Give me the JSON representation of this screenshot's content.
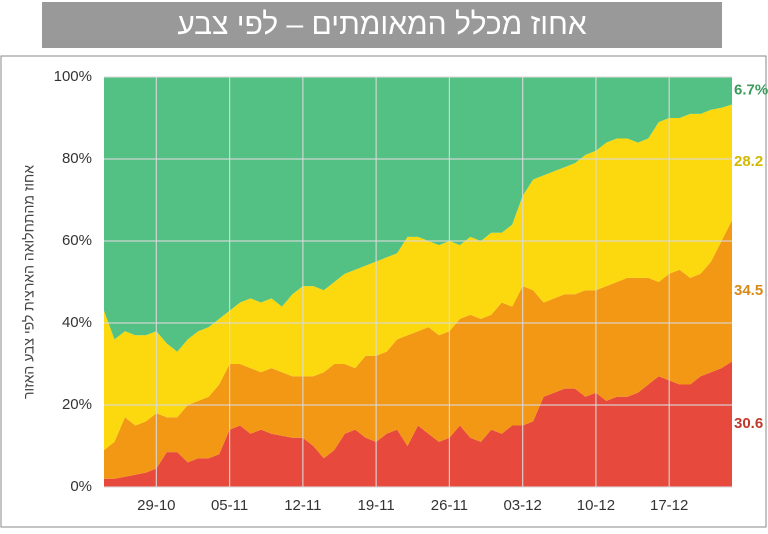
{
  "chart_data": {
    "type": "stacked_area",
    "title": "אחוז מכלל המאומתים – לפי צבע",
    "y_label": "אחוז מהתחלואה הארצית לפי צבע האזור",
    "categories": [
      null,
      null,
      null,
      null,
      null,
      "29-10",
      null,
      null,
      null,
      null,
      null,
      null,
      "05-11",
      null,
      null,
      null,
      null,
      null,
      null,
      "12-11",
      null,
      null,
      null,
      null,
      null,
      null,
      "19-11",
      null,
      null,
      null,
      null,
      null,
      null,
      "26-11",
      null,
      null,
      null,
      null,
      null,
      null,
      "03-12",
      null,
      null,
      null,
      null,
      null,
      null,
      "10-12",
      null,
      null,
      null,
      null,
      null,
      null,
      "17-12",
      null,
      null,
      null,
      null,
      null,
      null
    ],
    "ylim": [
      0,
      100
    ],
    "yticks": [
      {
        "value": 0,
        "label": "0%"
      },
      {
        "value": 20,
        "label": "20%"
      },
      {
        "value": 40,
        "label": "40%"
      },
      {
        "value": 60,
        "label": "60%"
      },
      {
        "value": 80,
        "label": "80%"
      },
      {
        "value": 100,
        "label": "100%"
      }
    ],
    "grid": true,
    "series": [
      {
        "name": "אדום",
        "color": "#e8493d",
        "label_color": "#c0392b",
        "end_label": "30.6",
        "values": [
          2,
          2,
          2.5,
          3,
          3.5,
          4.5,
          8.5,
          8.5,
          6,
          7,
          7,
          8,
          14,
          15,
          13,
          14,
          13,
          12.5,
          12,
          12,
          10,
          7,
          9,
          13,
          14,
          12,
          11,
          13,
          14,
          10,
          15,
          13,
          11,
          12,
          15,
          12,
          11,
          14,
          13,
          15,
          15,
          16,
          22,
          23,
          24,
          24,
          22,
          23,
          21,
          22,
          22,
          23,
          25,
          27,
          26,
          25,
          25,
          27,
          28,
          29,
          30.6
        ]
      },
      {
        "name": "כתום",
        "color": "#f39814",
        "label_color": "#d98a16",
        "end_label": "34.5",
        "values": [
          7,
          9,
          14.5,
          12,
          12.5,
          13.5,
          8.5,
          8.5,
          14,
          14,
          15,
          17,
          16,
          15,
          16,
          14,
          16,
          15.5,
          15,
          15,
          17,
          21,
          21,
          17,
          15,
          20,
          21,
          20,
          22,
          27,
          23,
          26,
          26,
          26,
          26,
          30,
          30,
          28,
          32,
          29,
          34,
          32,
          23,
          23,
          23,
          23,
          26,
          25,
          28,
          28,
          29,
          28,
          26,
          23,
          26,
          28,
          26,
          25,
          27,
          31,
          34.5
        ]
      },
      {
        "name": "צהוב",
        "color": "#fcd90f",
        "label_color": "#d4b800",
        "end_label": "28.2",
        "values": [
          34,
          25,
          21,
          22,
          21,
          20,
          18,
          16,
          16,
          17,
          17,
          16,
          13,
          15,
          17,
          17,
          17,
          16,
          20,
          22,
          22,
          20,
          20,
          22,
          24,
          22,
          23,
          23,
          21,
          24,
          23,
          21,
          22,
          22,
          18,
          19,
          19,
          20,
          17,
          20,
          22,
          27,
          31,
          31,
          31,
          32,
          33,
          34,
          35,
          35,
          34,
          33,
          34,
          39,
          38,
          37,
          40,
          39,
          37,
          32.5,
          28.2
        ]
      },
      {
        "name": "ירוק",
        "color": "#54c184",
        "label_color": "#3a9a5b",
        "end_label": "6.7%",
        "values": [
          57,
          64,
          62,
          63,
          63,
          62,
          65,
          67,
          64,
          62,
          61,
          59,
          57,
          55,
          54,
          55,
          54,
          56,
          53,
          51,
          51,
          52,
          50,
          48,
          47,
          46,
          45,
          44,
          43,
          39,
          39,
          40,
          41,
          40,
          41,
          39,
          40,
          38,
          38,
          36,
          29,
          25,
          24,
          23,
          22,
          21,
          19,
          18,
          16,
          15,
          15,
          16,
          15,
          11,
          10,
          10,
          9,
          9,
          8,
          7.5,
          6.7
        ]
      }
    ]
  }
}
